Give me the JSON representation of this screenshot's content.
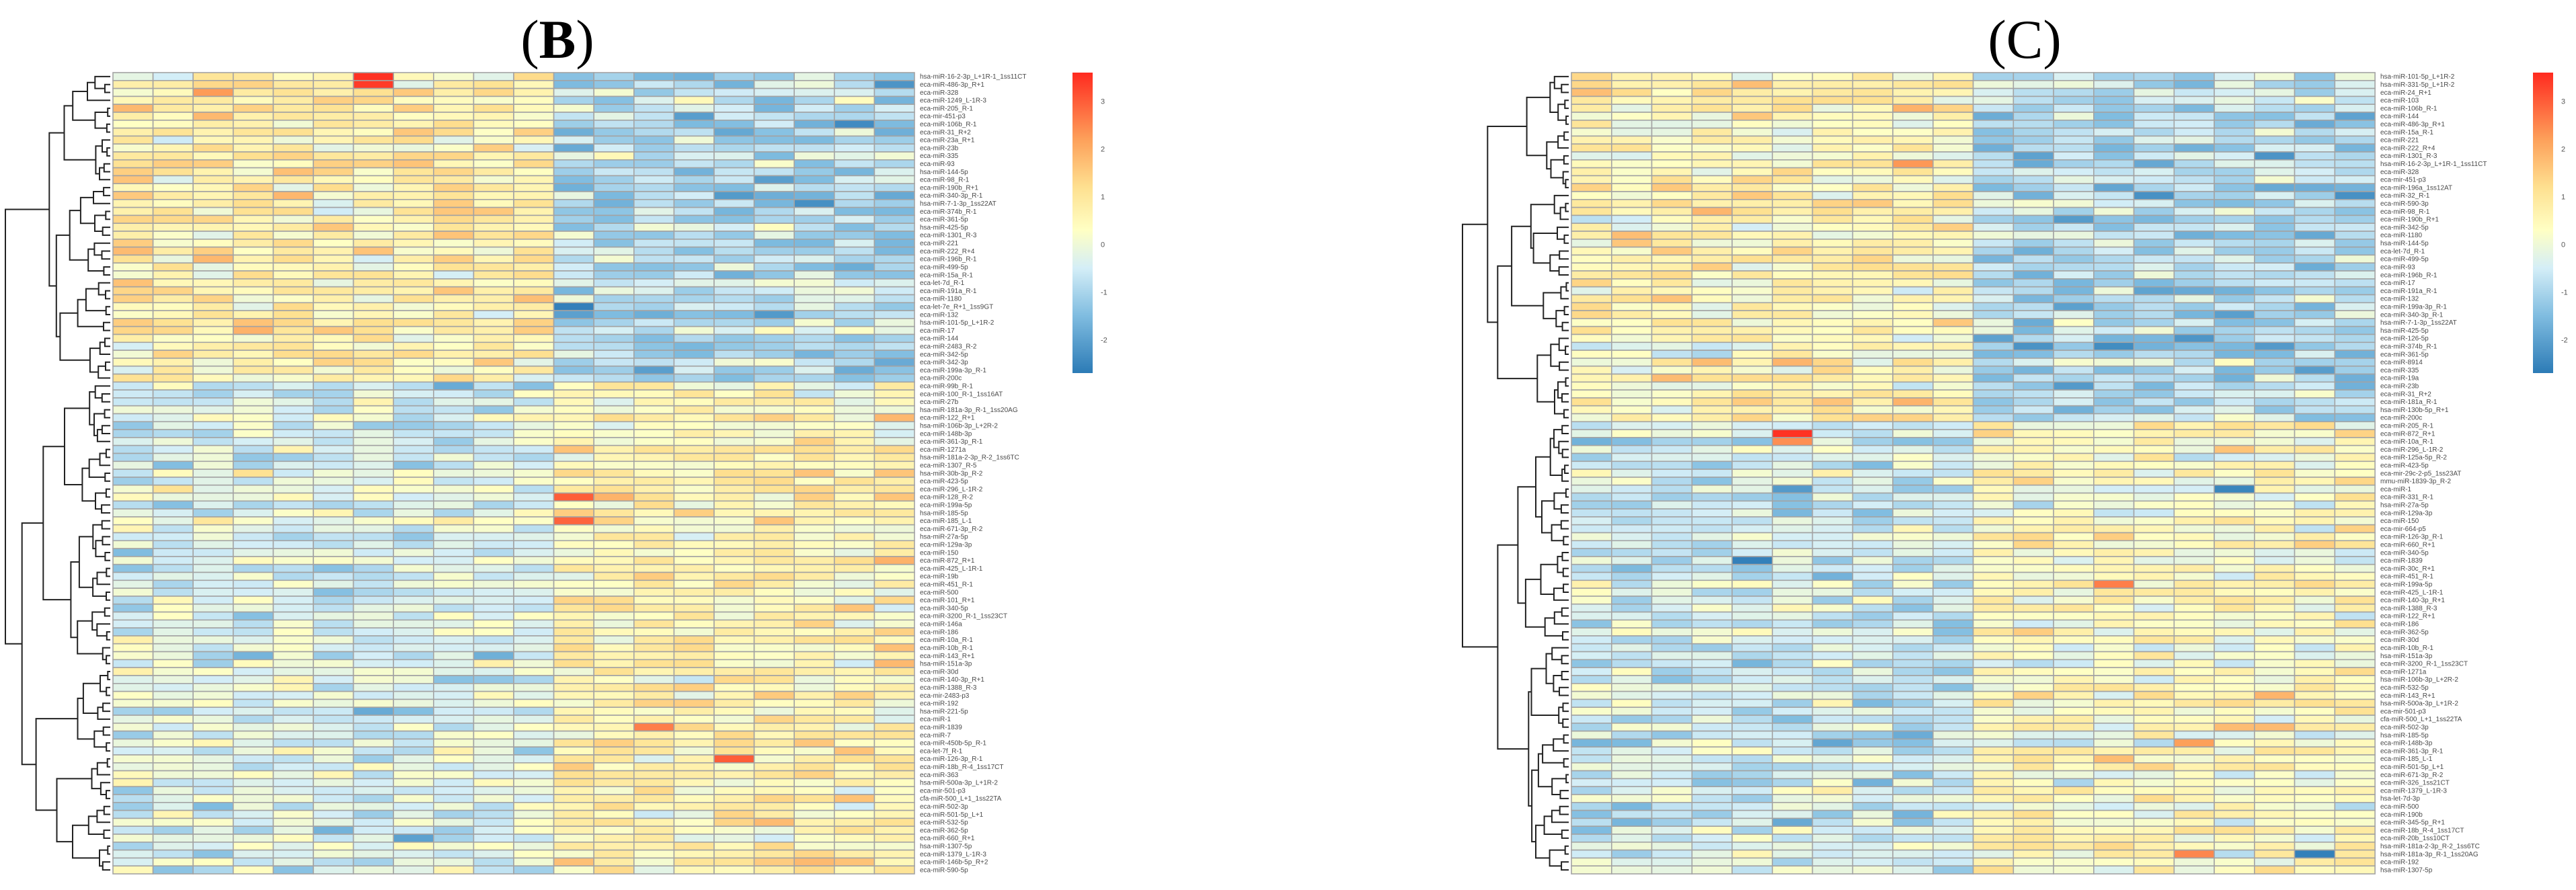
{
  "panels": [
    {
      "title_open": "(",
      "title_letter": "B",
      "title_close": ")"
    },
    {
      "title_open": "(",
      "title_letter": "C",
      "title_close": ")"
    }
  ],
  "colors": {
    "cell_border": "#a3a3a3",
    "scale": [
      "#2C7BB6",
      "#7FBCE0",
      "#D4EEF7",
      "#FFFFC4",
      "#FEE090",
      "#FDA05A",
      "#FF2A1F"
    ],
    "scale_values": [
      -2.7,
      -1.5,
      -0.5,
      0.3,
      1.2,
      2.2,
      3.6
    ]
  },
  "chart_data": [
    {
      "type": "heatmap",
      "title": "(B)",
      "n_columns": 20,
      "value_range": [
        -2.7,
        3.6
      ],
      "colorbar_ticks": [
        "3",
        "2",
        "1",
        "0",
        "-1",
        "-2"
      ],
      "colorbar_tick_values": [
        3,
        2,
        1,
        0,
        -1,
        -2
      ],
      "row_dendrogram": true,
      "cluster_split_after_row": 38,
      "blocks": [
        {
          "rows": [
            0,
            38
          ],
          "cols": [
            0,
            10
          ],
          "mean": 0.75
        },
        {
          "rows": [
            0,
            38
          ],
          "cols": [
            11,
            19
          ],
          "mean": -0.85
        },
        {
          "rows": [
            39,
            100
          ],
          "cols": [
            0,
            10
          ],
          "mean": -0.35
        },
        {
          "rows": [
            39,
            100
          ],
          "cols": [
            11,
            19
          ],
          "mean": 0.65
        }
      ],
      "highlights": [
        {
          "row": 0,
          "col": 6,
          "value": 3.5
        },
        {
          "row": 1,
          "col": 6,
          "value": 3.4
        },
        {
          "row": 6,
          "col": 18,
          "value": -2.4
        },
        {
          "row": 29,
          "col": 11,
          "value": -2.6
        },
        {
          "row": 53,
          "col": 11,
          "value": 3.0
        },
        {
          "row": 56,
          "col": 11,
          "value": 2.9
        },
        {
          "row": 82,
          "col": 13,
          "value": 2.6
        },
        {
          "row": 86,
          "col": 15,
          "value": 3.0
        },
        {
          "row": 96,
          "col": 7,
          "value": -2.0
        }
      ],
      "rows": [
        "hsa-miR-16-2-3p_L+1R-1_1ss11CT",
        "eca-miR-486-3p_R+1",
        "eca-miR-328",
        "eca-miR-1249_L-1R-3",
        "eca-miR-205_R-1",
        "eca-mir-451-p3",
        "eca-miR-106b_R-1",
        "eca-miR-31_R+2",
        "eca-miR-23a_R+1",
        "eca-miR-23b",
        "eca-miR-335",
        "eca-miR-93",
        "hsa-miR-144-5p",
        "eca-miR-98_R-1",
        "eca-miR-190b_R+1",
        "eca-miR-340-3p_R-1",
        "hsa-miR-7-1-3p_1ss22AT",
        "eca-miR-374b_R-1",
        "eca-miR-361-5p",
        "hsa-miR-425-5p",
        "eca-miR-1301_R-3",
        "eca-miR-221",
        "eca-miR-222_R+4",
        "eca-miR-196b_R-1",
        "eca-miR-499-5p",
        "eca-miR-15a_R-1",
        "eca-let-7d_R-1",
        "eca-miR-191a_R-1",
        "eca-miR-1180",
        "eca-let-7e_R+1_1ss9GT",
        "eca-miR-132",
        "hsa-miR-101-5p_L+1R-2",
        "eca-miR-17",
        "eca-miR-144",
        "eca-miR-2483_R-2",
        "eca-miR-342-5p",
        "eca-miR-342-3p",
        "eca-miR-199a-3p_R-1",
        "eca-miR-200c",
        "eca-miR-99b_R-1",
        "eca-miR-100_R-1_1ss16AT",
        "eca-miR-27b",
        "hsa-miR-181a-3p_R-1_1ss20AG",
        "eca-miR-122_R+1",
        "hsa-miR-106b-3p_L+2R-2",
        "eca-miR-148b-3p",
        "eca-miR-361-3p_R-1",
        "eca-miR-1271a",
        "hsa-miR-181a-2-3p_R-2_1ss6TC",
        "eca-miR-1307_R-5",
        "hsa-miR-30b-3p_R-2",
        "eca-miR-423-5p",
        "eca-miR-296_L-1R-2",
        "eca-miR-128_R-2",
        "eca-miR-199a-5p",
        "hsa-miR-185-5p",
        "eca-miR-185_L-1",
        "eca-miR-671-3p_R-2",
        "hsa-miR-27a-5p",
        "eca-miR-129a-3p",
        "eca-miR-150",
        "eca-miR-872_R+1",
        "eca-miR-425_L-1R-1",
        "eca-miR-19b",
        "eca-miR-451_R-1",
        "eca-miR-500",
        "eca-miR-101_R+1",
        "eca-miR-340-5p",
        "eca-miR-3200_R-1_1ss23CT",
        "eca-miR-146a",
        "eca-miR-186",
        "eca-miR-10a_R-1",
        "eca-miR-10b_R-1",
        "eca-miR-143_R+1",
        "hsa-miR-151a-3p",
        "eca-miR-30d",
        "eca-miR-140-3p_R+1",
        "eca-miR-1388_R-3",
        "eca-mir-2483-p3",
        "eca-miR-192",
        "hsa-miR-221-5p",
        "eca-miR-1",
        "eca-miR-1839",
        "eca-miR-7",
        "eca-miR-450b-5p_R-1",
        "eca-let-7f_R-1",
        "eca-miR-126-3p_R-1",
        "eca-miR-18b_R-4_1ss17CT",
        "eca-miR-363",
        "hsa-miR-500a-3p_L+1R-2",
        "eca-mir-501-p3",
        "cfa-miR-500_L+1_1ss22TA",
        "eca-miR-502-3p",
        "eca-miR-501-5p_L+1",
        "eca-miR-532-5p",
        "eca-miR-362-5p",
        "eca-miR-660_R+1",
        "hsa-miR-1307-5p",
        "eca-miR-1379_L-1R-3",
        "eca-miR-146b-5p_R+2",
        "eca-miR-590-5p"
      ]
    },
    {
      "type": "heatmap",
      "title": "(C)",
      "n_columns": 20,
      "value_range": [
        -2.7,
        3.6
      ],
      "colorbar_ticks": [
        "3",
        "2",
        "1",
        "0",
        "-1",
        "-2"
      ],
      "colorbar_tick_values": [
        3,
        2,
        1,
        0,
        -1,
        -2
      ],
      "row_dendrogram": true,
      "cluster_split_after_row": 43,
      "blocks": [
        {
          "rows": [
            0,
            43
          ],
          "cols": [
            0,
            9
          ],
          "mean": 0.6
        },
        {
          "rows": [
            0,
            43
          ],
          "cols": [
            10,
            19
          ],
          "mean": -0.95
        },
        {
          "rows": [
            44,
            100
          ],
          "cols": [
            0,
            9
          ],
          "mean": -0.55
        },
        {
          "rows": [
            44,
            100
          ],
          "cols": [
            10,
            19
          ],
          "mean": 0.35
        }
      ],
      "highlights": [
        {
          "row": 11,
          "col": 8,
          "value": 2.3
        },
        {
          "row": 15,
          "col": 14,
          "value": -2.3
        },
        {
          "row": 15,
          "col": 19,
          "value": -2.3
        },
        {
          "row": 45,
          "col": 5,
          "value": 3.5
        },
        {
          "row": 46,
          "col": 5,
          "value": 2.4
        },
        {
          "row": 52,
          "col": 16,
          "value": -2.5
        },
        {
          "row": 61,
          "col": 4,
          "value": -2.6
        },
        {
          "row": 64,
          "col": 13,
          "value": 2.6
        },
        {
          "row": 84,
          "col": 15,
          "value": 2.2
        },
        {
          "row": 98,
          "col": 15,
          "value": 2.5
        },
        {
          "row": 98,
          "col": 18,
          "value": -2.6
        }
      ],
      "rows": [
        "hsa-miR-101-5p_L+1R-2",
        "hsa-miR-331-5p_L+1R-2",
        "eca-miR-24_R+1",
        "eca-miR-103",
        "eca-miR-106b_R-1",
        "eca-miR-144",
        "eca-miR-486-3p_R+1",
        "eca-miR-15a_R-1",
        "eca-miR-221",
        "eca-miR-222_R+4",
        "eca-miR-1301_R-3",
        "hsa-miR-16-2-3p_L+1R-1_1ss11CT",
        "eca-miR-328",
        "eca-mir-451-p3",
        "eca-miR-196a_1ss12AT",
        "eca-miR-32_R-1",
        "eca-miR-590-3p",
        "eca-miR-98_R-1",
        "eca-miR-190b_R+1",
        "eca-miR-342-5p",
        "eca-miR-1180",
        "hsa-miR-144-5p",
        "eca-let-7d_R-1",
        "eca-miR-499-5p",
        "eca-miR-93",
        "eca-miR-196b_R-1",
        "eca-miR-17",
        "eca-miR-191a_R-1",
        "eca-miR-132",
        "eca-miR-199a-3p_R-1",
        "eca-miR-340-3p_R-1",
        "hsa-miR-7-1-3p_1ss22AT",
        "hsa-miR-425-5p",
        "eca-miR-126-5p",
        "eca-miR-374b_R-1",
        "eca-miR-361-5p",
        "eca-miR-8914",
        "eca-miR-335",
        "eca-miR-19a",
        "eca-miR-23b",
        "eca-miR-31_R+2",
        "eca-miR-181a_R-1",
        "hsa-miR-130b-5p_R+1",
        "eca-miR-200c",
        "eca-miR-205_R-1",
        "eca-miR-872_R+1",
        "eca-miR-10a_R-1",
        "eca-miR-296_L-1R-2",
        "eca-miR-125a-5p_R-2",
        "eca-miR-423-5p",
        "eca-mir-29c-2-p5_1ss23AT",
        "mmu-miR-1839-3p_R-2",
        "eca-miR-1",
        "eca-miR-331_R-1",
        "hsa-miR-27a-5p",
        "eca-miR-129a-3p",
        "eca-miR-150",
        "eca-mir-664-p5",
        "eca-miR-126-3p_R-1",
        "eca-miR-660_R+1",
        "eca-miR-340-5p",
        "eca-miR-1839",
        "eca-miR-30c_R+1",
        "eca-miR-451_R-1",
        "eca-miR-199a-5p",
        "eca-miR-425_L-1R-1",
        "eca-miR-140-3p_R+1",
        "eca-miR-1388_R-3",
        "eca-miR-122_R+1",
        "eca-miR-186",
        "eca-miR-362-5p",
        "eca-miR-30d",
        "eca-miR-10b_R-1",
        "hsa-miR-151a-3p",
        "eca-miR-3200_R-1_1ss23CT",
        "eca-miR-1271a",
        "hsa-miR-106b-3p_L+2R-2",
        "eca-miR-532-5p",
        "eca-miR-143_R+1",
        "hsa-miR-500a-3p_L+1R-2",
        "eca-mir-501-p3",
        "cfa-miR-500_L+1_1ss22TA",
        "eca-miR-502-3p",
        "hsa-miR-185-5p",
        "eca-miR-148b-3p",
        "eca-miR-361-3p_R-1",
        "eca-miR-185_L-1",
        "eca-miR-501-5p_L+1",
        "eca-miR-671-3p_R-2",
        "eca-miR-326_1ss21CT",
        "eca-miR-1379_L-1R-3",
        "hsa-let-7d-3p",
        "eca-miR-500",
        "eca-miR-190b",
        "eca-miR-345-5p_R+1",
        "eca-miR-18b_R-4_1ss17CT",
        "eca-miR-20b_1ss10CT",
        "hsa-miR-181a-2-3p_R-2_1ss6TC",
        "hsa-miR-181a-3p_R-1_1ss20AG",
        "eca-miR-192",
        "hsa-miR-1307-5p"
      ]
    }
  ]
}
